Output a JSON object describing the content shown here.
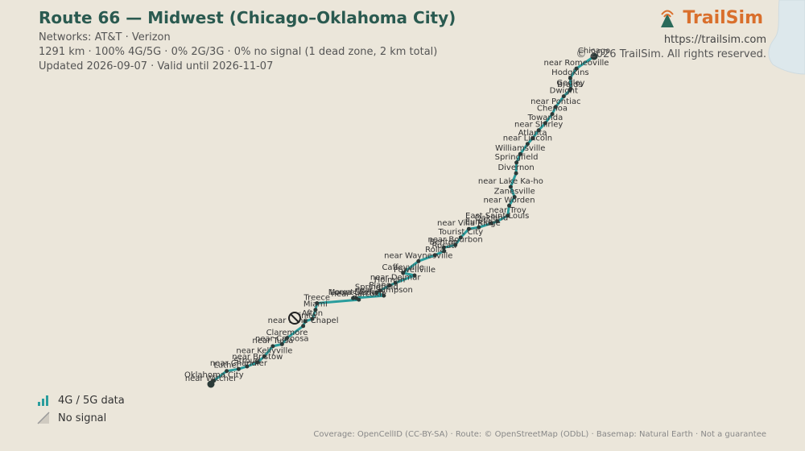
{
  "header": {
    "title": "Route 66 — Midwest (Chicago–Oklahoma City)",
    "networks": "Networks: AT&T · Verizon",
    "stats": "1291 km · 100% 4G/5G · 0% 2G/3G · 0% no signal (1 dead zone, 2 km total)",
    "updated": "Updated 2026-09-07 · Valid until 2026-11-07"
  },
  "brand": {
    "name": "TrailSim",
    "url": "https://trailsim.com",
    "copyright": "© 2026 TrailSim. All rights reserved.",
    "icon": "signal-tower-icon",
    "color": "#d96f2c"
  },
  "legend": {
    "items": [
      {
        "label": "4G / 5G data",
        "icon": "signal-bars-icon",
        "color": "#2a9d9d"
      },
      {
        "label": "No signal",
        "icon": "no-signal-icon",
        "color": "#aaaaaa"
      }
    ]
  },
  "footer": {
    "attribution": "Coverage: OpenCellID (CC-BY-SA) · Route: © OpenStreetMap (ODbL) · Basemap: Natural Earth · Not a guarantee"
  },
  "map": {
    "route_color": "#2a9d9d",
    "start_label": "Chicago",
    "end_label": "near Witcher",
    "dead_zone_icon": "no-signal-icon",
    "towns": [
      {
        "name": "Chicago",
        "lon": -87.63,
        "lat": 41.88
      },
      {
        "name": "near Romeoville",
        "lon": -88.09,
        "lat": 41.64
      },
      {
        "name": "Hodgkins",
        "lon": -88.25,
        "lat": 41.45
      },
      {
        "name": "Godley",
        "lon": -88.24,
        "lat": 41.24
      },
      {
        "name": "Braids",
        "lon": -88.26,
        "lat": 41.21
      },
      {
        "name": "near Pontiac",
        "lon": -88.63,
        "lat": 40.88
      },
      {
        "name": "Dwight",
        "lon": -88.42,
        "lat": 41.09
      },
      {
        "name": "Towanda",
        "lon": -88.9,
        "lat": 40.56
      },
      {
        "name": "Chenoa",
        "lon": -88.72,
        "lat": 40.74
      },
      {
        "name": "Atlanta",
        "lon": -89.23,
        "lat": 40.26
      },
      {
        "name": "near Shirley",
        "lon": -89.07,
        "lat": 40.42
      },
      {
        "name": "Williamsville",
        "lon": -89.55,
        "lat": 39.95
      },
      {
        "name": "near Lincoln",
        "lon": -89.36,
        "lat": 40.15
      },
      {
        "name": "Divernon",
        "lon": -89.66,
        "lat": 39.57
      },
      {
        "name": "Springfield",
        "lon": -89.65,
        "lat": 39.78
      },
      {
        "name": "near Lake Ka-ho",
        "lon": -89.8,
        "lat": 39.3
      },
      {
        "name": "Zanesville",
        "lon": -89.7,
        "lat": 39.1
      },
      {
        "name": "near Troy",
        "lon": -89.88,
        "lat": 38.73
      },
      {
        "name": "Oakland",
        "lon": -90.3,
        "lat": 38.58
      },
      {
        "name": "near Worden",
        "lon": -89.84,
        "lat": 38.93
      },
      {
        "name": "near Villa Ridge",
        "lon": -90.89,
        "lat": 38.47
      },
      {
        "name": "East Saint Louis",
        "lon": -90.15,
        "lat": 38.62
      },
      {
        "name": "near Bourbon",
        "lon": -91.24,
        "lat": 38.15
      },
      {
        "name": "Eureka",
        "lon": -90.63,
        "lat": 38.5
      },
      {
        "name": "Rolla",
        "lon": -91.77,
        "lat": 37.95
      },
      {
        "name": "Benton",
        "lon": -91.54,
        "lat": 38.1
      },
      {
        "name": "Tourist City",
        "lon": -91.1,
        "lat": 38.3
      },
      {
        "name": "near Waynesville",
        "lon": -92.2,
        "lat": 37.83
      },
      {
        "name": "Caffeyville",
        "lon": -92.6,
        "lat": 37.6
      },
      {
        "name": "Rosati",
        "lon": -91.53,
        "lat": 38.03
      },
      {
        "name": "Powellville",
        "lon": -92.3,
        "lat": 37.55
      },
      {
        "name": "near Delmar",
        "lon": -92.8,
        "lat": 37.4
      },
      {
        "name": "Holman",
        "lon": -92.95,
        "lat": 37.35
      },
      {
        "name": "Plano",
        "lon": -93.2,
        "lat": 37.25
      },
      {
        "name": "near Sampson",
        "lon": -93.1,
        "lat": 37.15
      },
      {
        "name": "Loma Linda",
        "lon": -93.9,
        "lat": 37.1
      },
      {
        "name": "near Sarcoxie",
        "lon": -93.75,
        "lat": 37.07
      },
      {
        "name": "Springfield",
        "lon": -93.29,
        "lat": 37.21
      },
      {
        "name": "Afton",
        "lon": -94.96,
        "lat": 36.69
      },
      {
        "name": "Treece",
        "lon": -94.84,
        "lat": 37.0
      },
      {
        "name": "Mount Vernon",
        "lon": -93.82,
        "lat": 37.1
      },
      {
        "name": "Miami",
        "lon": -94.88,
        "lat": 36.87
      },
      {
        "name": "near Lone Chapel",
        "lon": -95.2,
        "lat": 36.55
      },
      {
        "name": "near Catoosa",
        "lon": -95.75,
        "lat": 36.19
      },
      {
        "name": "Vinita",
        "lon": -95.15,
        "lat": 36.64
      },
      {
        "name": "near Kellyville",
        "lon": -96.21,
        "lat": 35.95
      },
      {
        "name": "Claremore",
        "lon": -95.62,
        "lat": 36.31
      },
      {
        "name": "Stroud",
        "lon": -96.66,
        "lat": 35.75
      },
      {
        "name": "near Tulsa",
        "lon": -95.99,
        "lat": 36.15
      },
      {
        "name": "Luther",
        "lon": -97.19,
        "lat": 35.66
      },
      {
        "name": "Oklahoma City",
        "lon": -97.52,
        "lat": 35.47
      },
      {
        "name": "near Bristow",
        "lon": -96.39,
        "lat": 35.83
      },
      {
        "name": "near Chandler",
        "lon": -96.88,
        "lat": 35.7
      },
      {
        "name": "near Witcher",
        "lon": -97.6,
        "lat": 35.4
      }
    ]
  }
}
